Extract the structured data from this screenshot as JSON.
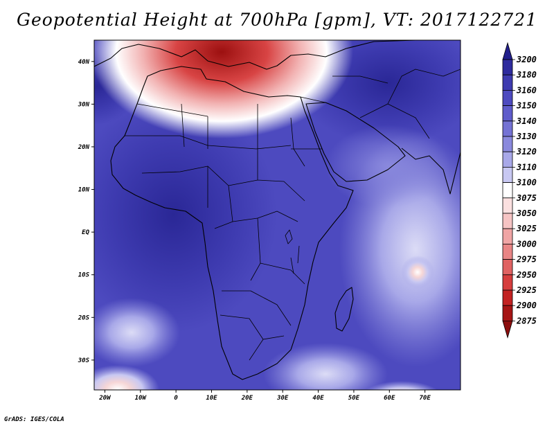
{
  "title": "Geopotential Height at 700hPa [gpm], VT: 2017122721",
  "credit": "GrADS: IGES/COLA",
  "map": {
    "lon_range": [
      -23,
      80
    ],
    "lat_range": [
      -37,
      45
    ],
    "lon_ticks": [
      {
        "value": -20,
        "label": "20W"
      },
      {
        "value": -10,
        "label": "10W"
      },
      {
        "value": 0,
        "label": "0"
      },
      {
        "value": 10,
        "label": "10E"
      },
      {
        "value": 20,
        "label": "20E"
      },
      {
        "value": 30,
        "label": "30E"
      },
      {
        "value": 40,
        "label": "40E"
      },
      {
        "value": 50,
        "label": "50E"
      },
      {
        "value": 60,
        "label": "60E"
      },
      {
        "value": 70,
        "label": "70E"
      }
    ],
    "lat_ticks": [
      {
        "value": 40,
        "label": "40N"
      },
      {
        "value": 30,
        "label": "30N"
      },
      {
        "value": 20,
        "label": "20N"
      },
      {
        "value": 10,
        "label": "10N"
      },
      {
        "value": 0,
        "label": "EQ"
      },
      {
        "value": -10,
        "label": "10S"
      },
      {
        "value": -20,
        "label": "20S"
      },
      {
        "value": -30,
        "label": "30S"
      }
    ]
  },
  "colorbar": {
    "labels": [
      "3200",
      "3180",
      "3160",
      "3150",
      "3140",
      "3130",
      "3120",
      "3110",
      "3100",
      "3075",
      "3050",
      "3025",
      "3000",
      "2975",
      "2950",
      "2925",
      "2900",
      "2875"
    ],
    "colors": [
      "#221f8c",
      "#2e2b9e",
      "#3e3bb0",
      "#4d4abf",
      "#5f5ccb",
      "#7472d4",
      "#8a89dd",
      "#a8a8e8",
      "#c8c8f2",
      "#ffffff",
      "#fbe0e0",
      "#f6c4c4",
      "#f0a5a5",
      "#e98585",
      "#e06262",
      "#d63d3d",
      "#c32222",
      "#a61414",
      "#8c0e0e"
    ]
  }
}
